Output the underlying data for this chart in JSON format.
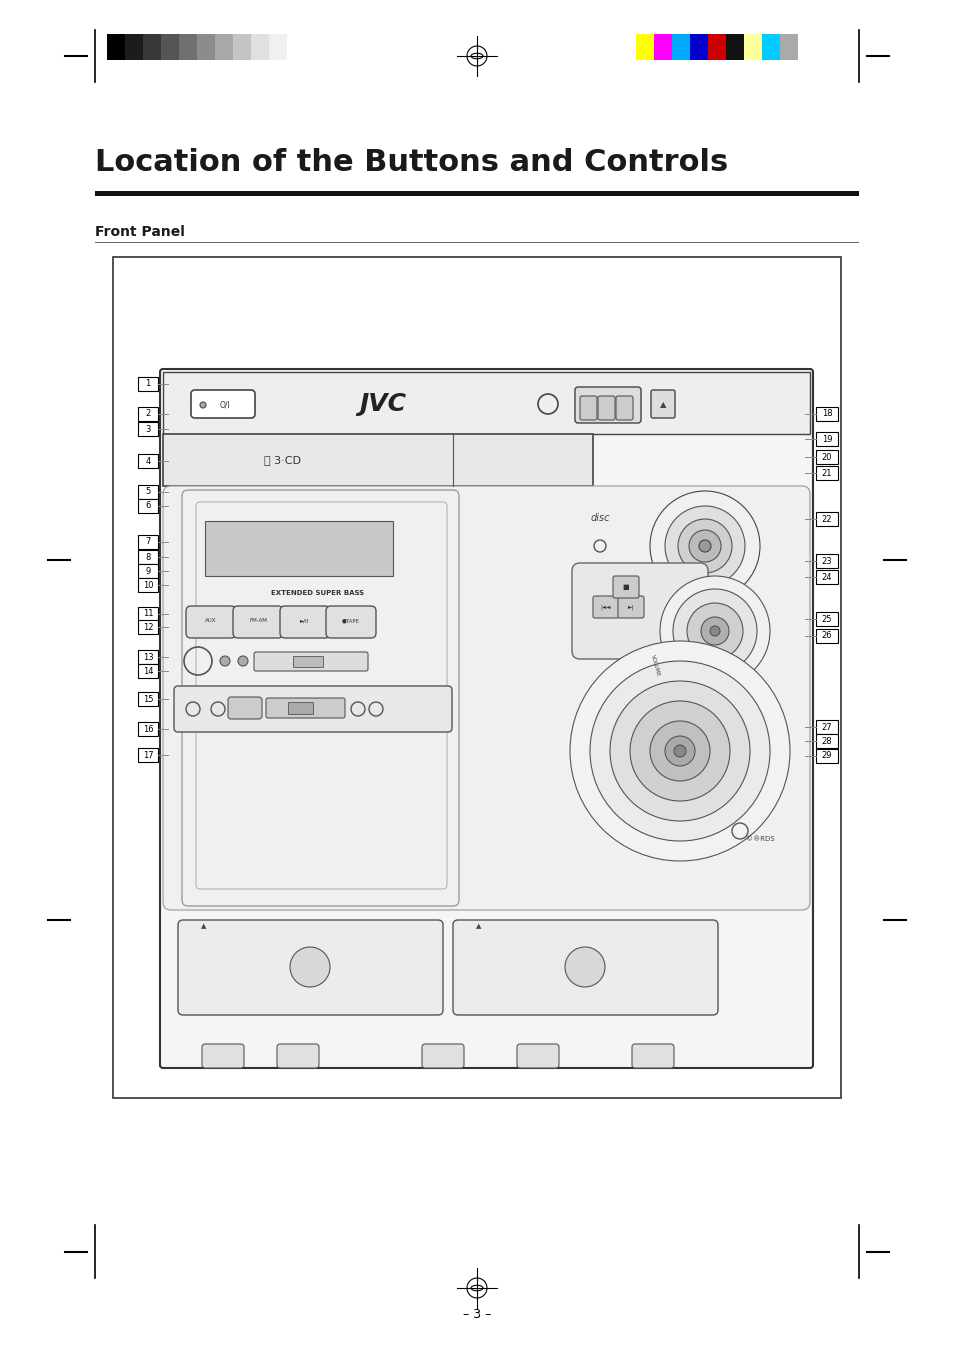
{
  "page_width": 9.54,
  "page_height": 13.52,
  "bg_color": "#ffffff",
  "title": "Location of the Buttons and Controls",
  "subtitle": "Front Panel",
  "page_number": "– 3 –",
  "title_font_size": 22,
  "subtitle_font_size": 10,
  "grayscale_bars": [
    "#000000",
    "#1c1c1c",
    "#383838",
    "#555555",
    "#707070",
    "#8c8c8c",
    "#a8a8a8",
    "#c4c4c4",
    "#e0e0e0",
    "#f0f0f0",
    "#ffffff"
  ],
  "color_bars": [
    "#ffff00",
    "#ff00ff",
    "#00aaff",
    "#0000cc",
    "#cc0000",
    "#111111",
    "#ffff99",
    "#00ccff",
    "#aaaaaa"
  ],
  "left_numbers": [
    "1",
    "2",
    "3",
    "4",
    "5",
    "6",
    "7",
    "8",
    "9",
    "10",
    "11",
    "12",
    "13",
    "14",
    "15",
    "16",
    "17"
  ],
  "right_numbers": [
    "18",
    "19",
    "20",
    "21",
    "22",
    "23",
    "24",
    "25",
    "26",
    "27",
    "28",
    "29"
  ],
  "left_y": [
    385,
    415,
    430,
    462,
    493,
    507,
    543,
    558,
    572,
    586,
    615,
    628,
    658,
    672,
    700,
    730,
    756
  ],
  "right_y": [
    415,
    440,
    458,
    474,
    520,
    562,
    578,
    620,
    637,
    728,
    742,
    757
  ]
}
